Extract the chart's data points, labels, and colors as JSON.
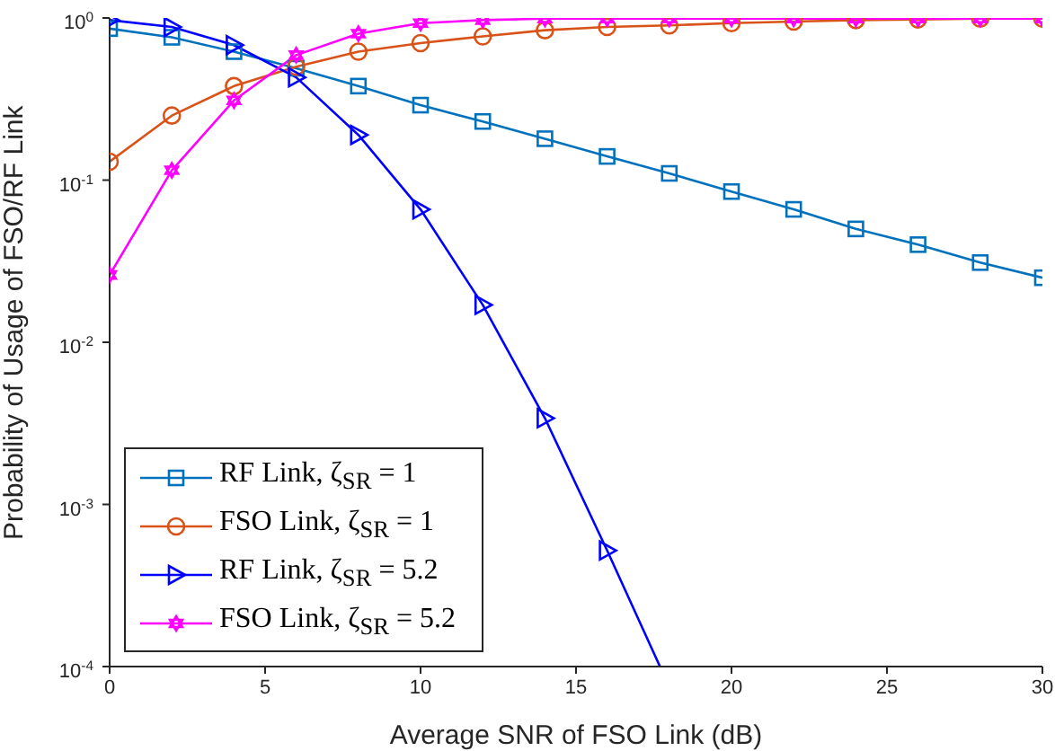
{
  "chart_data": {
    "type": "line",
    "xlabel": "Average SNR of FSO Link (dB)",
    "ylabel": "Probability of Usage of FSO/RF Link",
    "x": [
      0,
      2,
      4,
      6,
      8,
      10,
      12,
      14,
      16,
      18,
      20,
      22,
      24,
      26,
      28,
      30
    ],
    "series": [
      {
        "name": "RF Link, ζ$_{SR}$ = 1",
        "color": "#0072bd",
        "marker": "square",
        "values": [
          0.86,
          0.76,
          0.62,
          0.49,
          0.38,
          0.29,
          0.23,
          0.18,
          0.14,
          0.11,
          0.085,
          0.066,
          0.05,
          0.04,
          0.031,
          0.025
        ]
      },
      {
        "name": "FSO Link, ζ$_{SR}$ = 1",
        "color": "#d95319",
        "marker": "circle",
        "values": [
          0.13,
          0.25,
          0.38,
          0.5,
          0.62,
          0.7,
          0.77,
          0.84,
          0.88,
          0.9,
          0.93,
          0.95,
          0.97,
          0.98,
          0.99,
          0.99
        ]
      },
      {
        "name": "RF Link, ζ$_{SR}$ = 5.2",
        "color": "#0000ff",
        "marker": "triangle",
        "x": [
          0,
          2,
          4,
          6,
          8,
          10,
          12,
          14,
          16,
          17.7
        ],
        "values": [
          0.97,
          0.88,
          0.68,
          0.43,
          0.19,
          0.066,
          0.017,
          0.0034,
          0.00052,
          0.0001
        ]
      },
      {
        "name": "FSO Link, ζ$_{SR}$ = 5.2",
        "color": "#ff00ff",
        "marker": "star",
        "values": [
          0.026,
          0.115,
          0.31,
          0.59,
          0.8,
          0.93,
          0.97,
          0.99,
          0.99,
          0.99,
          0.99,
          0.99,
          0.99,
          0.99,
          0.99,
          0.99
        ]
      }
    ],
    "log": "y",
    "xlim": [
      0,
      30
    ],
    "xticks": [
      0,
      5,
      10,
      15,
      20,
      25,
      30
    ],
    "ylim": [
      0.0001,
      1
    ],
    "yticks": [
      {
        "value": 0.0001,
        "label": "10$^{-4}$"
      },
      {
        "value": 0.001,
        "label": "10$^{-3}$"
      },
      {
        "value": 0.01,
        "label": "10$^{-2}$"
      },
      {
        "value": 0.1,
        "label": "10$^{-1}$"
      },
      {
        "value": 1,
        "label": "10$^{0}$"
      }
    ],
    "legend": "bottom left",
    "line_style": "solid"
  }
}
